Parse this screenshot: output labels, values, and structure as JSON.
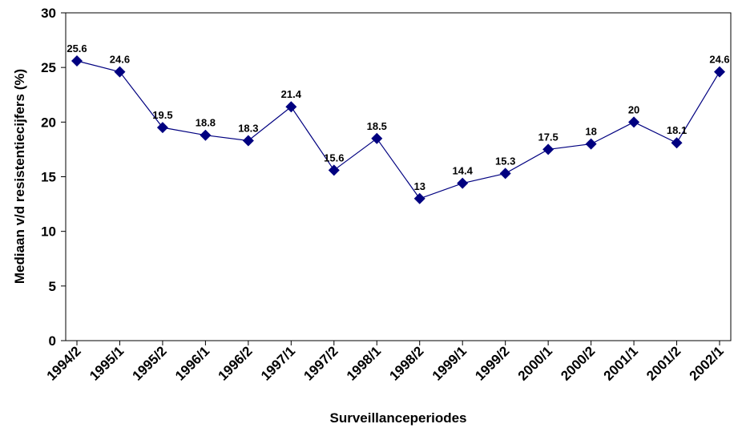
{
  "chart_data": {
    "type": "line",
    "x_label": "Surveillanceperiodes",
    "y_label": "Mediaan v/d resistentiecijfers (%)",
    "categories": [
      "1994/2",
      "1995/1",
      "1995/2",
      "1996/1",
      "1996/2",
      "1997/1",
      "1997/2",
      "1998/1",
      "1998/2",
      "1999/1",
      "1999/2",
      "2000/1",
      "2000/2",
      "2001/1",
      "2001/2",
      "2002/1"
    ],
    "series": [
      {
        "name": "Mediaan",
        "color": "#000080",
        "values": [
          25.6,
          24.6,
          19.5,
          18.8,
          18.3,
          21.4,
          15.6,
          18.5,
          13,
          14.4,
          15.3,
          17.5,
          18,
          20,
          18.1,
          24.6
        ]
      }
    ],
    "ylim": [
      0,
      30
    ],
    "yticks": [
      0,
      5,
      10,
      15,
      20,
      25,
      30
    ],
    "grid": false
  }
}
